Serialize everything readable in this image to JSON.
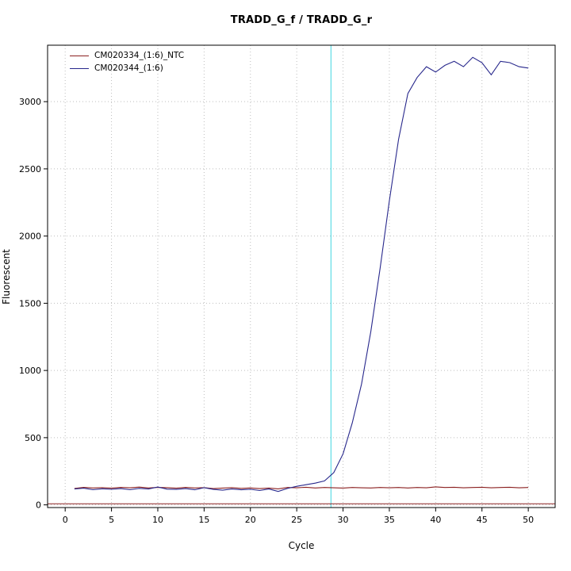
{
  "chart_data": {
    "type": "line",
    "title": "TRADD_G_f / TRADD_G_r",
    "xlabel": "Cycle",
    "ylabel": "Fluorescent",
    "axis": {
      "xlim": [
        -1.9,
        52.9
      ],
      "ylim": [
        -20,
        3420
      ],
      "x_ticks": [
        0,
        5,
        10,
        15,
        20,
        25,
        30,
        35,
        40,
        45,
        50
      ],
      "y_ticks": [
        0,
        500,
        1000,
        1500,
        2000,
        2500,
        3000
      ],
      "grid": "dotted"
    },
    "colors": {
      "grid": "#BEBEBE",
      "axis": "#000000",
      "background": "#FFFFFF"
    },
    "ct_line": {
      "x": 28.7,
      "color": "#5FDDE5"
    },
    "threshold_line": {
      "y": 8,
      "color": "#8B2020"
    },
    "legend_position": "top-left",
    "cycles": [
      1,
      2,
      3,
      4,
      5,
      6,
      7,
      8,
      9,
      10,
      11,
      12,
      13,
      14,
      15,
      16,
      17,
      18,
      19,
      20,
      21,
      22,
      23,
      24,
      25,
      26,
      27,
      28,
      29,
      30,
      31,
      32,
      33,
      34,
      35,
      36,
      37,
      38,
      39,
      40,
      41,
      42,
      43,
      44,
      45,
      46,
      47,
      48,
      49,
      50
    ],
    "series": [
      {
        "name": "CM020334_(1:6)_NTC",
        "color": "#8B2020",
        "values": [
          122,
          130,
          126,
          128,
          124,
          130,
          127,
          132,
          126,
          130,
          128,
          124,
          130,
          126,
          128,
          121,
          125,
          128,
          123,
          126,
          121,
          125,
          119,
          129,
          127,
          131,
          126,
          129,
          127,
          125,
          129,
          127,
          126,
          129,
          127,
          129,
          126,
          129,
          127,
          134,
          129,
          131,
          127,
          129,
          131,
          127,
          129,
          131,
          127,
          129
        ]
      },
      {
        "name": "CM020344_(1:6)",
        "color": "#28288C",
        "values": [
          118,
          124,
          113,
          120,
          116,
          121,
          113,
          123,
          118,
          133,
          117,
          115,
          121,
          112,
          128,
          115,
          109,
          118,
          112,
          116,
          107,
          118,
          100,
          122,
          138,
          150,
          162,
          178,
          240,
          380,
          610,
          900,
          1290,
          1760,
          2260,
          2720,
          3060,
          3180,
          3260,
          3220,
          3270,
          3300,
          3260,
          3330,
          3290,
          3200,
          3300,
          3290,
          3260,
          3250
        ]
      }
    ]
  }
}
